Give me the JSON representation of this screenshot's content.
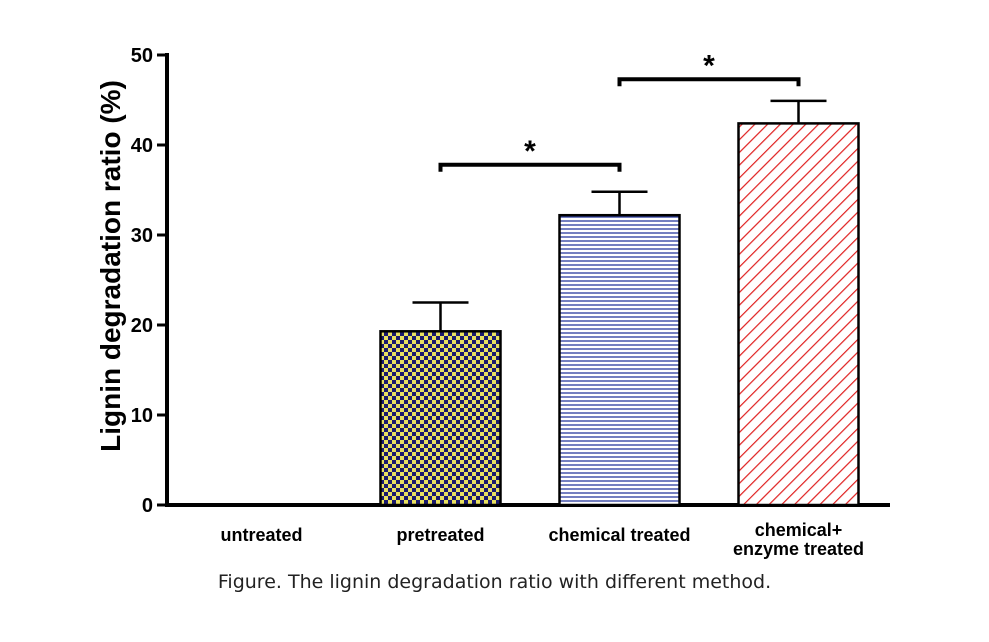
{
  "caption": "Figure. The lignin degradation ratio with different method.",
  "chart_data": {
    "type": "bar",
    "categories": [
      "untreated",
      "pretreated",
      "chemical treated",
      "chemical+\nenzyme treated"
    ],
    "values": [
      0,
      19.3,
      32.2,
      42.4
    ],
    "errors": [
      0,
      3.2,
      2.6,
      2.5
    ],
    "patterns": [
      "none",
      "checker",
      "horizontal",
      "diagonal"
    ],
    "colors": {
      "checker_a": "#e8e060",
      "checker_b": "#1a1a6e",
      "horizontal": "#2a3a9e",
      "diagonal": "#e02020"
    },
    "ylabel": "Lignin degradation ratio (%)",
    "xlabel": "",
    "ylim": [
      0,
      50
    ],
    "yticks": [
      0,
      10,
      20,
      30,
      40,
      50
    ],
    "significance": [
      {
        "from": 1,
        "to": 2,
        "label": "*",
        "y": 37.8
      },
      {
        "from": 2,
        "to": 3,
        "label": "*",
        "y": 47.3
      }
    ],
    "grid": false
  }
}
